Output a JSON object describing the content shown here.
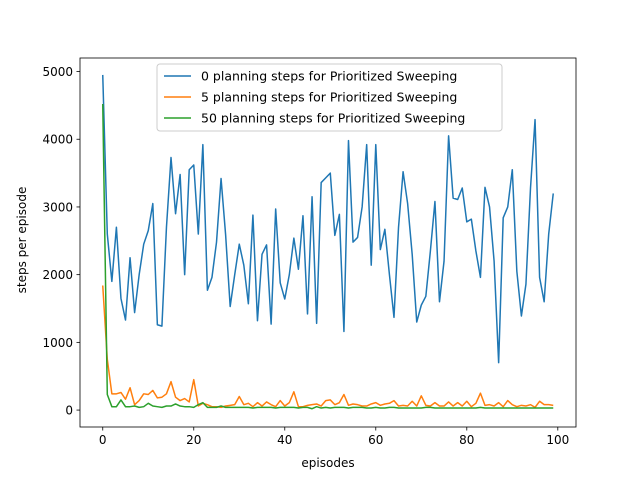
{
  "chart_data": {
    "type": "line",
    "xlabel": "episodes",
    "ylabel": "steps per episode",
    "xlim": [
      -5,
      104
    ],
    "ylim": [
      -250,
      5200
    ],
    "xticks": [
      0,
      20,
      40,
      60,
      80,
      100
    ],
    "yticks": [
      0,
      1000,
      2000,
      3000,
      4000,
      5000
    ],
    "legend_position": "top-center",
    "series": [
      {
        "name": "0 planning steps for Prioritized Sweeping",
        "color": "#1f77b4",
        "values": [
          4950,
          2600,
          1900,
          2700,
          1650,
          1330,
          2250,
          1440,
          2000,
          2450,
          2650,
          3050,
          1260,
          1240,
          2700,
          3730,
          2900,
          3480,
          2000,
          3550,
          3620,
          2600,
          3920,
          1770,
          1960,
          2480,
          3420,
          2590,
          1530,
          2000,
          2450,
          2140,
          1570,
          2880,
          1320,
          2300,
          2440,
          1270,
          2970,
          1880,
          1640,
          2000,
          2540,
          2080,
          2870,
          1420,
          3150,
          1280,
          3360,
          3430,
          3500,
          2580,
          2890,
          1160,
          3980,
          2480,
          2550,
          3000,
          3920,
          2140,
          3920,
          2370,
          2670,
          2000,
          1370,
          2700,
          3520,
          3050,
          2300,
          1300,
          1550,
          1680,
          2350,
          3080,
          1600,
          2200,
          4050,
          3130,
          3110,
          3280,
          2780,
          2820,
          2350,
          1960,
          3290,
          3000,
          2200,
          700,
          2840,
          3000,
          3550,
          2050,
          1390,
          1860,
          3280,
          4290,
          1960,
          1600,
          2600,
          3200
        ]
      },
      {
        "name": "5 planning steps for Prioritized Sweeping",
        "color": "#ff7f0e",
        "values": [
          1840,
          750,
          240,
          240,
          260,
          160,
          330,
          80,
          140,
          240,
          230,
          290,
          180,
          190,
          240,
          420,
          190,
          140,
          170,
          120,
          450,
          60,
          100,
          80,
          50,
          50,
          40,
          60,
          70,
          80,
          200,
          80,
          100,
          50,
          110,
          60,
          120,
          80,
          50,
          140,
          60,
          110,
          270,
          50,
          50,
          70,
          80,
          90,
          60,
          140,
          150,
          80,
          110,
          230,
          70,
          90,
          80,
          60,
          60,
          90,
          110,
          70,
          90,
          100,
          140,
          60,
          70,
          60,
          130,
          60,
          210,
          70,
          60,
          110,
          60,
          60,
          120,
          60,
          110,
          60,
          130,
          50,
          100,
          250,
          70,
          80,
          60,
          110,
          50,
          140,
          80,
          50,
          70,
          60,
          80,
          40,
          130,
          80,
          80,
          70
        ]
      },
      {
        "name": "50 planning steps for Prioritized Sweeping",
        "color": "#2ca02c",
        "values": [
          4520,
          230,
          50,
          50,
          150,
          50,
          50,
          60,
          40,
          50,
          100,
          60,
          50,
          40,
          60,
          60,
          90,
          60,
          50,
          50,
          40,
          80,
          110,
          40,
          40,
          40,
          60,
          40,
          40,
          40,
          40,
          40,
          40,
          30,
          40,
          40,
          40,
          40,
          30,
          40,
          40,
          40,
          40,
          30,
          40,
          40,
          20,
          50,
          30,
          40,
          30,
          40,
          40,
          40,
          30,
          40,
          40,
          40,
          30,
          30,
          40,
          30,
          30,
          40,
          40,
          30,
          30,
          30,
          30,
          30,
          30,
          40,
          40,
          30,
          30,
          30,
          30,
          30,
          30,
          30,
          30,
          30,
          30,
          40,
          30,
          30,
          30,
          30,
          30,
          30,
          30,
          30,
          30,
          30,
          30,
          30,
          30,
          30,
          30,
          30
        ]
      }
    ]
  }
}
